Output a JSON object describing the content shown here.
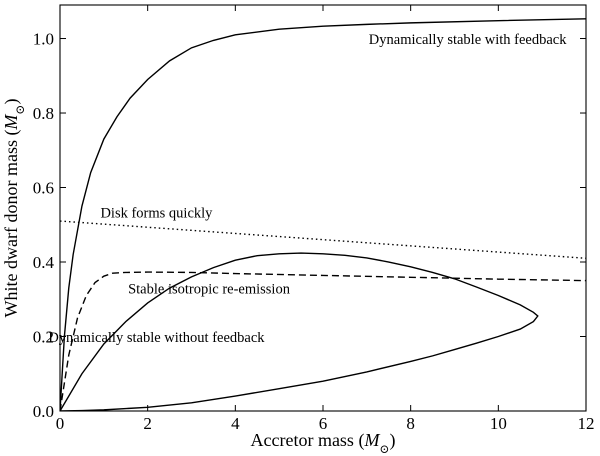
{
  "chart_data": {
    "type": "line",
    "title": "",
    "xlabel": {
      "text": "Accretor mass (",
      "symbol": "M",
      "sub": "⊙",
      "close": ")"
    },
    "ylabel": {
      "text": "White dwarf donor mass (",
      "symbol": "M",
      "sub": "⊙",
      "close": ")"
    },
    "xlim": [
      0,
      12
    ],
    "ylim": [
      0,
      1.09
    ],
    "grid": false,
    "legend": "none",
    "x_ticks": [
      0,
      2,
      4,
      6,
      8,
      10,
      12
    ],
    "x_tick_labels": [
      "0",
      "2",
      "4",
      "6",
      "8",
      "10",
      "12"
    ],
    "y_ticks": [
      0.0,
      0.2,
      0.4,
      0.6,
      0.8,
      1.0
    ],
    "y_tick_labels": [
      "0.0",
      "0.2",
      "0.4",
      "0.6",
      "0.8",
      "1.0"
    ],
    "series": [
      {
        "style": "solid",
        "x": [
          0,
          0.1,
          0.2,
          0.3,
          0.5,
          0.7,
          1.0,
          1.3,
          1.6,
          2.0,
          2.5,
          3.0,
          3.5,
          4.0,
          5.0,
          6.0,
          7.0,
          8.0,
          10.0,
          12.0
        ],
        "y": [
          0.0,
          0.2,
          0.33,
          0.42,
          0.55,
          0.64,
          0.73,
          0.79,
          0.84,
          0.89,
          0.94,
          0.975,
          0.995,
          1.01,
          1.025,
          1.033,
          1.038,
          1.042,
          1.048,
          1.053
        ]
      },
      {
        "style": "solid",
        "x": [
          0,
          0.5,
          1.0,
          1.5,
          2.0,
          2.5,
          3.0,
          3.5,
          4.0,
          4.5,
          5.0,
          5.5,
          6.0,
          6.5,
          7.0,
          7.5,
          8.0,
          8.5,
          9.0,
          9.5,
          10.0,
          10.5,
          10.8,
          10.9,
          10.8,
          10.5,
          10.0,
          9.5,
          9.0,
          8.5,
          8.0,
          7.0,
          6.0,
          5.0,
          4.0,
          3.0,
          2.0,
          1.0,
          0.5,
          0
        ],
        "y": [
          0.0,
          0.1,
          0.18,
          0.24,
          0.29,
          0.33,
          0.36,
          0.385,
          0.405,
          0.417,
          0.422,
          0.424,
          0.422,
          0.418,
          0.411,
          0.4,
          0.387,
          0.372,
          0.355,
          0.333,
          0.31,
          0.285,
          0.265,
          0.255,
          0.24,
          0.22,
          0.2,
          0.182,
          0.165,
          0.148,
          0.133,
          0.105,
          0.08,
          0.06,
          0.04,
          0.022,
          0.01,
          0.003,
          0.001,
          0.0
        ]
      },
      {
        "style": "dotted",
        "x": [
          0,
          12
        ],
        "y": [
          0.51,
          0.41
        ]
      },
      {
        "style": "dashed",
        "x": [
          0,
          0.2,
          0.4,
          0.6,
          0.8,
          1.0,
          1.2,
          1.5,
          2.0,
          3.0,
          4.0,
          6.0,
          8.0,
          10.0,
          12.0
        ],
        "y": [
          0.0,
          0.15,
          0.25,
          0.31,
          0.345,
          0.362,
          0.37,
          0.372,
          0.373,
          0.372,
          0.369,
          0.364,
          0.359,
          0.354,
          0.35
        ]
      }
    ],
    "annotations": [
      {
        "text": "Dynamically stable with feedback",
        "x": 9.3,
        "y": 0.985
      },
      {
        "text": "Disk forms quickly",
        "x": 2.2,
        "y": 0.52
      },
      {
        "text": "Stable isotropic re-emission",
        "x": 3.4,
        "y": 0.315
      },
      {
        "text": "Dynamically stable without feedback",
        "x": 2.2,
        "y": 0.185
      }
    ]
  }
}
